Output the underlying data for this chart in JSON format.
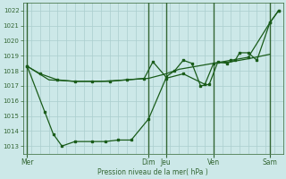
{
  "xlabel": "Pression niveau de la mer( hPa )",
  "background_color": "#cce8e8",
  "grid_color": "#aacece",
  "line_color": "#1a5c1a",
  "sep_color": "#336633",
  "ylim": [
    1012.5,
    1022.5
  ],
  "yticks": [
    1013,
    1014,
    1015,
    1016,
    1017,
    1018,
    1019,
    1020,
    1021,
    1022
  ],
  "xlim": [
    0,
    30
  ],
  "day_labels": [
    "Mer",
    "Dim",
    "Jeu",
    "Ven",
    "Sam"
  ],
  "day_positions": [
    0.5,
    14.5,
    16.5,
    22.0,
    28.5
  ],
  "line1_x": [
    0.5,
    2.0,
    4.0,
    6.0,
    8.0,
    10.0,
    12.0,
    14.0,
    15.0,
    16.5,
    17.5,
    18.5,
    19.5,
    20.5,
    21.5,
    22.5,
    23.5,
    24.5,
    25.0,
    26.0,
    27.0,
    28.5,
    29.5
  ],
  "line1_y": [
    1018.3,
    1017.8,
    1017.4,
    1017.3,
    1017.3,
    1017.3,
    1017.4,
    1017.5,
    1018.6,
    1017.6,
    1018.0,
    1018.7,
    1018.5,
    1017.0,
    1017.1,
    1018.6,
    1018.5,
    1018.7,
    1019.2,
    1019.2,
    1018.7,
    1021.2,
    1022.0
  ],
  "line2_x": [
    0.5,
    3.0,
    6.0,
    9.0,
    12.0,
    14.5,
    16.5,
    18.0,
    20.0,
    22.0,
    24.0,
    26.0,
    28.5
  ],
  "line2_y": [
    1018.3,
    1017.4,
    1017.3,
    1017.3,
    1017.4,
    1017.5,
    1017.8,
    1018.1,
    1018.3,
    1018.5,
    1018.6,
    1018.8,
    1019.1
  ],
  "line3_x": [
    0.5,
    2.5,
    3.5,
    4.5,
    6.0,
    8.0,
    9.5,
    11.0,
    12.5,
    14.5,
    16.5,
    18.5,
    21.0,
    22.0,
    24.0,
    26.0,
    28.5,
    29.5
  ],
  "line3_y": [
    1018.3,
    1015.3,
    1013.8,
    1013.0,
    1013.3,
    1013.3,
    1013.3,
    1013.4,
    1013.4,
    1014.8,
    1017.5,
    1017.8,
    1017.1,
    1018.5,
    1018.7,
    1018.9,
    1021.2,
    1022.0
  ],
  "line1_markers_x": [
    0.5,
    14.0,
    15.0,
    16.5,
    17.5,
    18.5,
    19.5,
    20.5,
    21.5,
    22.5,
    23.5,
    24.5,
    25.0,
    26.0,
    27.0,
    28.5,
    29.5
  ],
  "line3_markers_x": [
    0.5,
    2.5,
    3.5,
    4.5,
    6.0,
    8.0,
    9.5,
    11.0,
    12.5,
    14.5,
    16.5,
    18.5,
    21.0,
    22.0,
    24.0,
    26.0,
    28.5,
    29.5
  ]
}
